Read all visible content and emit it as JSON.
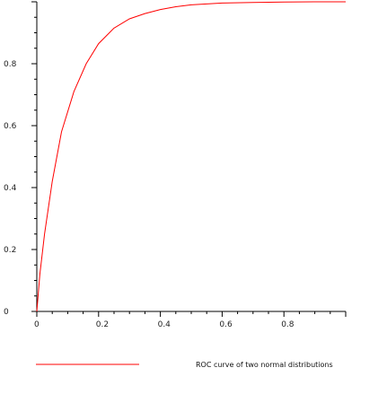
{
  "chart_data": {
    "type": "line",
    "title": "",
    "xlabel": "",
    "ylabel": "",
    "xlim": [
      0,
      1
    ],
    "ylim": [
      0,
      1
    ],
    "x_ticks": [
      0,
      0.2,
      0.4,
      0.6,
      0.8
    ],
    "x_tick_labels": [
      "0",
      "0.2",
      "0.4",
      "0.6",
      "0.8"
    ],
    "y_ticks": [
      0,
      0.2,
      0.4,
      0.6,
      0.8
    ],
    "y_tick_labels": [
      "0",
      "0.2",
      "0.4",
      "0.6",
      "0.8"
    ],
    "grid": false,
    "legend_position": "bottom",
    "series": [
      {
        "name": "ROC curve of two normal distributions",
        "color": "#ff0000",
        "x": [
          0,
          0.01,
          0.025,
          0.05,
          0.08,
          0.12,
          0.16,
          0.2,
          0.25,
          0.3,
          0.35,
          0.4,
          0.45,
          0.5,
          0.55,
          0.6,
          0.7,
          0.8,
          0.9,
          1.0
        ],
        "y": [
          0,
          0.12,
          0.25,
          0.42,
          0.58,
          0.71,
          0.8,
          0.865,
          0.915,
          0.945,
          0.962,
          0.975,
          0.984,
          0.99,
          0.993,
          0.996,
          0.998,
          0.999,
          1.0,
          1.0
        ]
      }
    ]
  }
}
